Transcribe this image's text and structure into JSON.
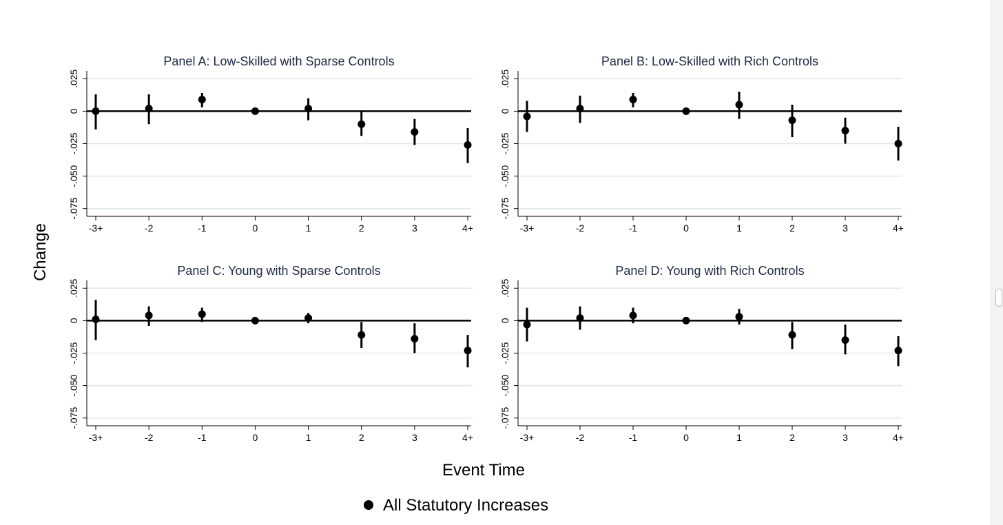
{
  "chart_data": [
    {
      "type": "scatter",
      "title": "Panel A: Low-Skilled with Sparse Controls",
      "categories": [
        "-3+",
        "-2",
        "-1",
        "0",
        "1",
        "2",
        "3",
        "4+"
      ],
      "yticks": [
        ".025",
        "0",
        "-.025",
        "-.050",
        "-.075"
      ],
      "ylim": [
        -0.081,
        0.031
      ],
      "grid": true,
      "series": [
        {
          "name": "All Statutory Increases",
          "values": [
            0.0,
            0.002,
            0.009,
            0.0,
            0.002,
            -0.01,
            -0.016,
            -0.026
          ],
          "ci_low": [
            -0.014,
            -0.01,
            0.003,
            0.0,
            -0.007,
            -0.019,
            -0.026,
            -0.04
          ],
          "ci_high": [
            0.013,
            0.013,
            0.014,
            0.0,
            0.01,
            0.0,
            -0.006,
            -0.013
          ]
        }
      ]
    },
    {
      "type": "scatter",
      "title": "Panel B: Low-Skilled with Rich Controls",
      "categories": [
        "-3+",
        "-2",
        "-1",
        "0",
        "1",
        "2",
        "3",
        "4+"
      ],
      "yticks": [
        ".025",
        "0",
        "-.025",
        "-.050",
        "-.075"
      ],
      "ylim": [
        -0.081,
        0.031
      ],
      "grid": true,
      "series": [
        {
          "name": "All Statutory Increases",
          "values": [
            -0.004,
            0.002,
            0.009,
            0.0,
            0.005,
            -0.007,
            -0.015,
            -0.025
          ],
          "ci_low": [
            -0.016,
            -0.009,
            0.003,
            0.0,
            -0.006,
            -0.02,
            -0.025,
            -0.038
          ],
          "ci_high": [
            0.008,
            0.012,
            0.014,
            0.0,
            0.015,
            0.005,
            -0.005,
            -0.012
          ]
        }
      ]
    },
    {
      "type": "scatter",
      "title": "Panel C: Young with Sparse Controls",
      "categories": [
        "-3+",
        "-2",
        "-1",
        "0",
        "1",
        "2",
        "3",
        "4+"
      ],
      "yticks": [
        ".025",
        "0",
        "-.025",
        "-.050",
        "-.075"
      ],
      "ylim": [
        -0.081,
        0.031
      ],
      "grid": true,
      "series": [
        {
          "name": "All Statutory Increases",
          "values": [
            0.001,
            0.004,
            0.005,
            0.0,
            0.002,
            -0.011,
            -0.014,
            -0.023
          ],
          "ci_low": [
            -0.015,
            -0.004,
            -0.001,
            0.0,
            -0.002,
            -0.021,
            -0.025,
            -0.036
          ],
          "ci_high": [
            0.016,
            0.011,
            0.01,
            0.0,
            0.006,
            -0.001,
            -0.002,
            -0.011
          ]
        }
      ]
    },
    {
      "type": "scatter",
      "title": "Panel D: Young with Rich Controls",
      "categories": [
        "-3+",
        "-2",
        "-1",
        "0",
        "1",
        "2",
        "3",
        "4+"
      ],
      "yticks": [
        ".025",
        "0",
        "-.025",
        "-.050",
        "-.075"
      ],
      "ylim": [
        -0.081,
        0.031
      ],
      "grid": true,
      "series": [
        {
          "name": "All Statutory Increases",
          "values": [
            -0.003,
            0.002,
            0.004,
            0.0,
            0.003,
            -0.011,
            -0.015,
            -0.023
          ],
          "ci_low": [
            -0.016,
            -0.007,
            -0.002,
            0.0,
            -0.003,
            -0.022,
            -0.026,
            -0.035
          ],
          "ci_high": [
            0.01,
            0.011,
            0.01,
            0.0,
            0.009,
            -0.001,
            -0.003,
            -0.012
          ]
        }
      ]
    }
  ],
  "figure": {
    "xlabel": "Event Time",
    "ylabel": "Change",
    "legend": {
      "label": "All Statutory Increases",
      "position": "bottom-center"
    },
    "colors": {
      "marker": "#000000",
      "grid": "#dde9e9",
      "zero_line": "#000000",
      "title": "#1f2a44"
    }
  }
}
